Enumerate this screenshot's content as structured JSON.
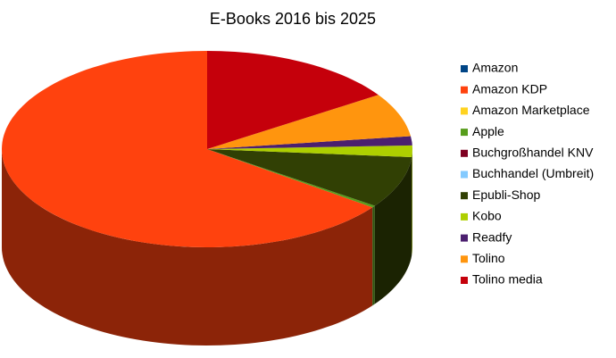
{
  "chart_data": {
    "type": "pie",
    "title": "E-Books 2016 bis 2025",
    "categories": [
      "Amazon",
      "Amazon KDP",
      "Amazon Marketplace",
      "Apple",
      "Buchgroßhandel KNV",
      "Buchhandel (Umbreit)",
      "Epubli-Shop",
      "Kobo",
      "Readfy",
      "Tolino",
      "Tolino media"
    ],
    "values": [
      0,
      64.9,
      0,
      0.3,
      0,
      0,
      8.5,
      1.9,
      1.5,
      7.2,
      15.7
    ],
    "colors": [
      "#004586",
      "#ff420e",
      "#ffd320",
      "#579d1c",
      "#7e0021",
      "#83caff",
      "#314004",
      "#aecf00",
      "#4b1f6f",
      "#ff950e",
      "#c5000b"
    ],
    "legend": "right"
  }
}
